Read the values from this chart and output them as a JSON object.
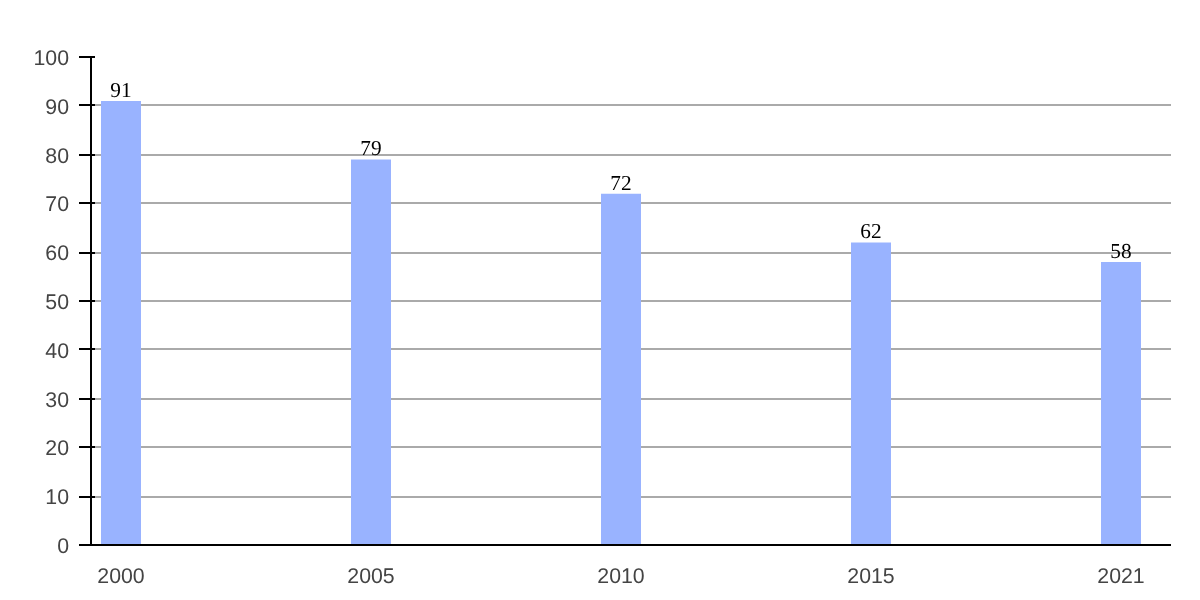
{
  "chart_data": {
    "type": "bar",
    "categories": [
      "2000",
      "2005",
      "2010",
      "2015",
      "2021"
    ],
    "values": [
      91,
      79,
      72,
      62,
      58
    ],
    "color": "#99b3ff",
    "ylim": [
      0,
      100
    ],
    "yticks": [
      0,
      10,
      20,
      30,
      40,
      50,
      60,
      70,
      80,
      90,
      100
    ],
    "grid": "y",
    "data_labels": true
  }
}
